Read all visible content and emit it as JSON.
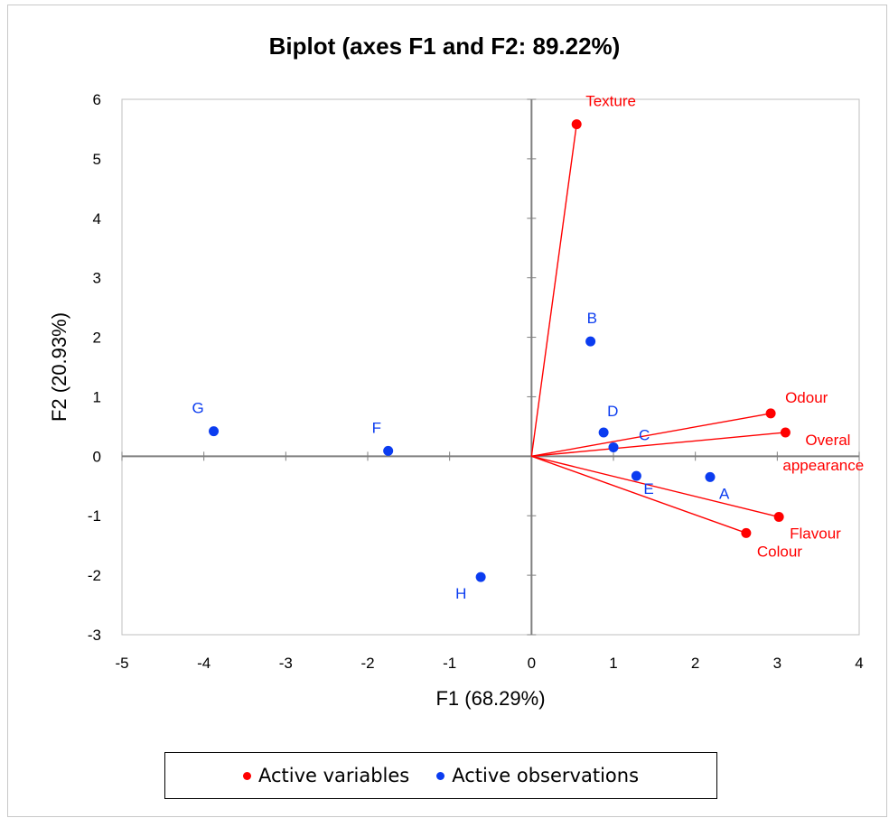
{
  "chart_data": {
    "type": "scatter",
    "title": "Biplot (axes F1 and F2: 89.22%)",
    "xlabel": "F1 (68.29%)",
    "ylabel": "F2 (20.93%)",
    "xlim": [
      -5,
      4
    ],
    "ylim": [
      -3,
      6
    ],
    "xticks": [
      "-5",
      "-4",
      "-3",
      "-2",
      "-1",
      "0",
      "1",
      "2",
      "3",
      "4"
    ],
    "yticks": [
      "-3",
      "-2",
      "-1",
      "0",
      "1",
      "2",
      "3",
      "4",
      "5",
      "6"
    ],
    "colors": {
      "variables": "#ff0000",
      "observations": "#0b3cf0"
    },
    "variables": [
      {
        "label": "Texture",
        "x": 0.55,
        "y": 5.58
      },
      {
        "label": "Odour",
        "x": 2.92,
        "y": 0.72
      },
      {
        "label": "Overal appearance",
        "label_lines": [
          "Overal",
          "appearance"
        ],
        "x": 3.1,
        "y": 0.4
      },
      {
        "label": "Flavour",
        "x": 3.02,
        "y": -1.02
      },
      {
        "label": "Colour",
        "x": 2.62,
        "y": -1.29
      }
    ],
    "observations": [
      {
        "label": "A",
        "x": 2.18,
        "y": -0.35
      },
      {
        "label": "B",
        "x": 0.72,
        "y": 1.93
      },
      {
        "label": "C",
        "x": 1.0,
        "y": 0.15
      },
      {
        "label": "D",
        "x": 0.88,
        "y": 0.4
      },
      {
        "label": "E",
        "x": 1.28,
        "y": -0.33
      },
      {
        "label": "F",
        "x": -1.75,
        "y": 0.09
      },
      {
        "label": "G",
        "x": -3.88,
        "y": 0.42
      },
      {
        "label": "H",
        "x": -0.62,
        "y": -2.03
      }
    ],
    "legend": {
      "position": "bottom",
      "items": [
        "Active variables",
        "Active observations"
      ]
    }
  }
}
